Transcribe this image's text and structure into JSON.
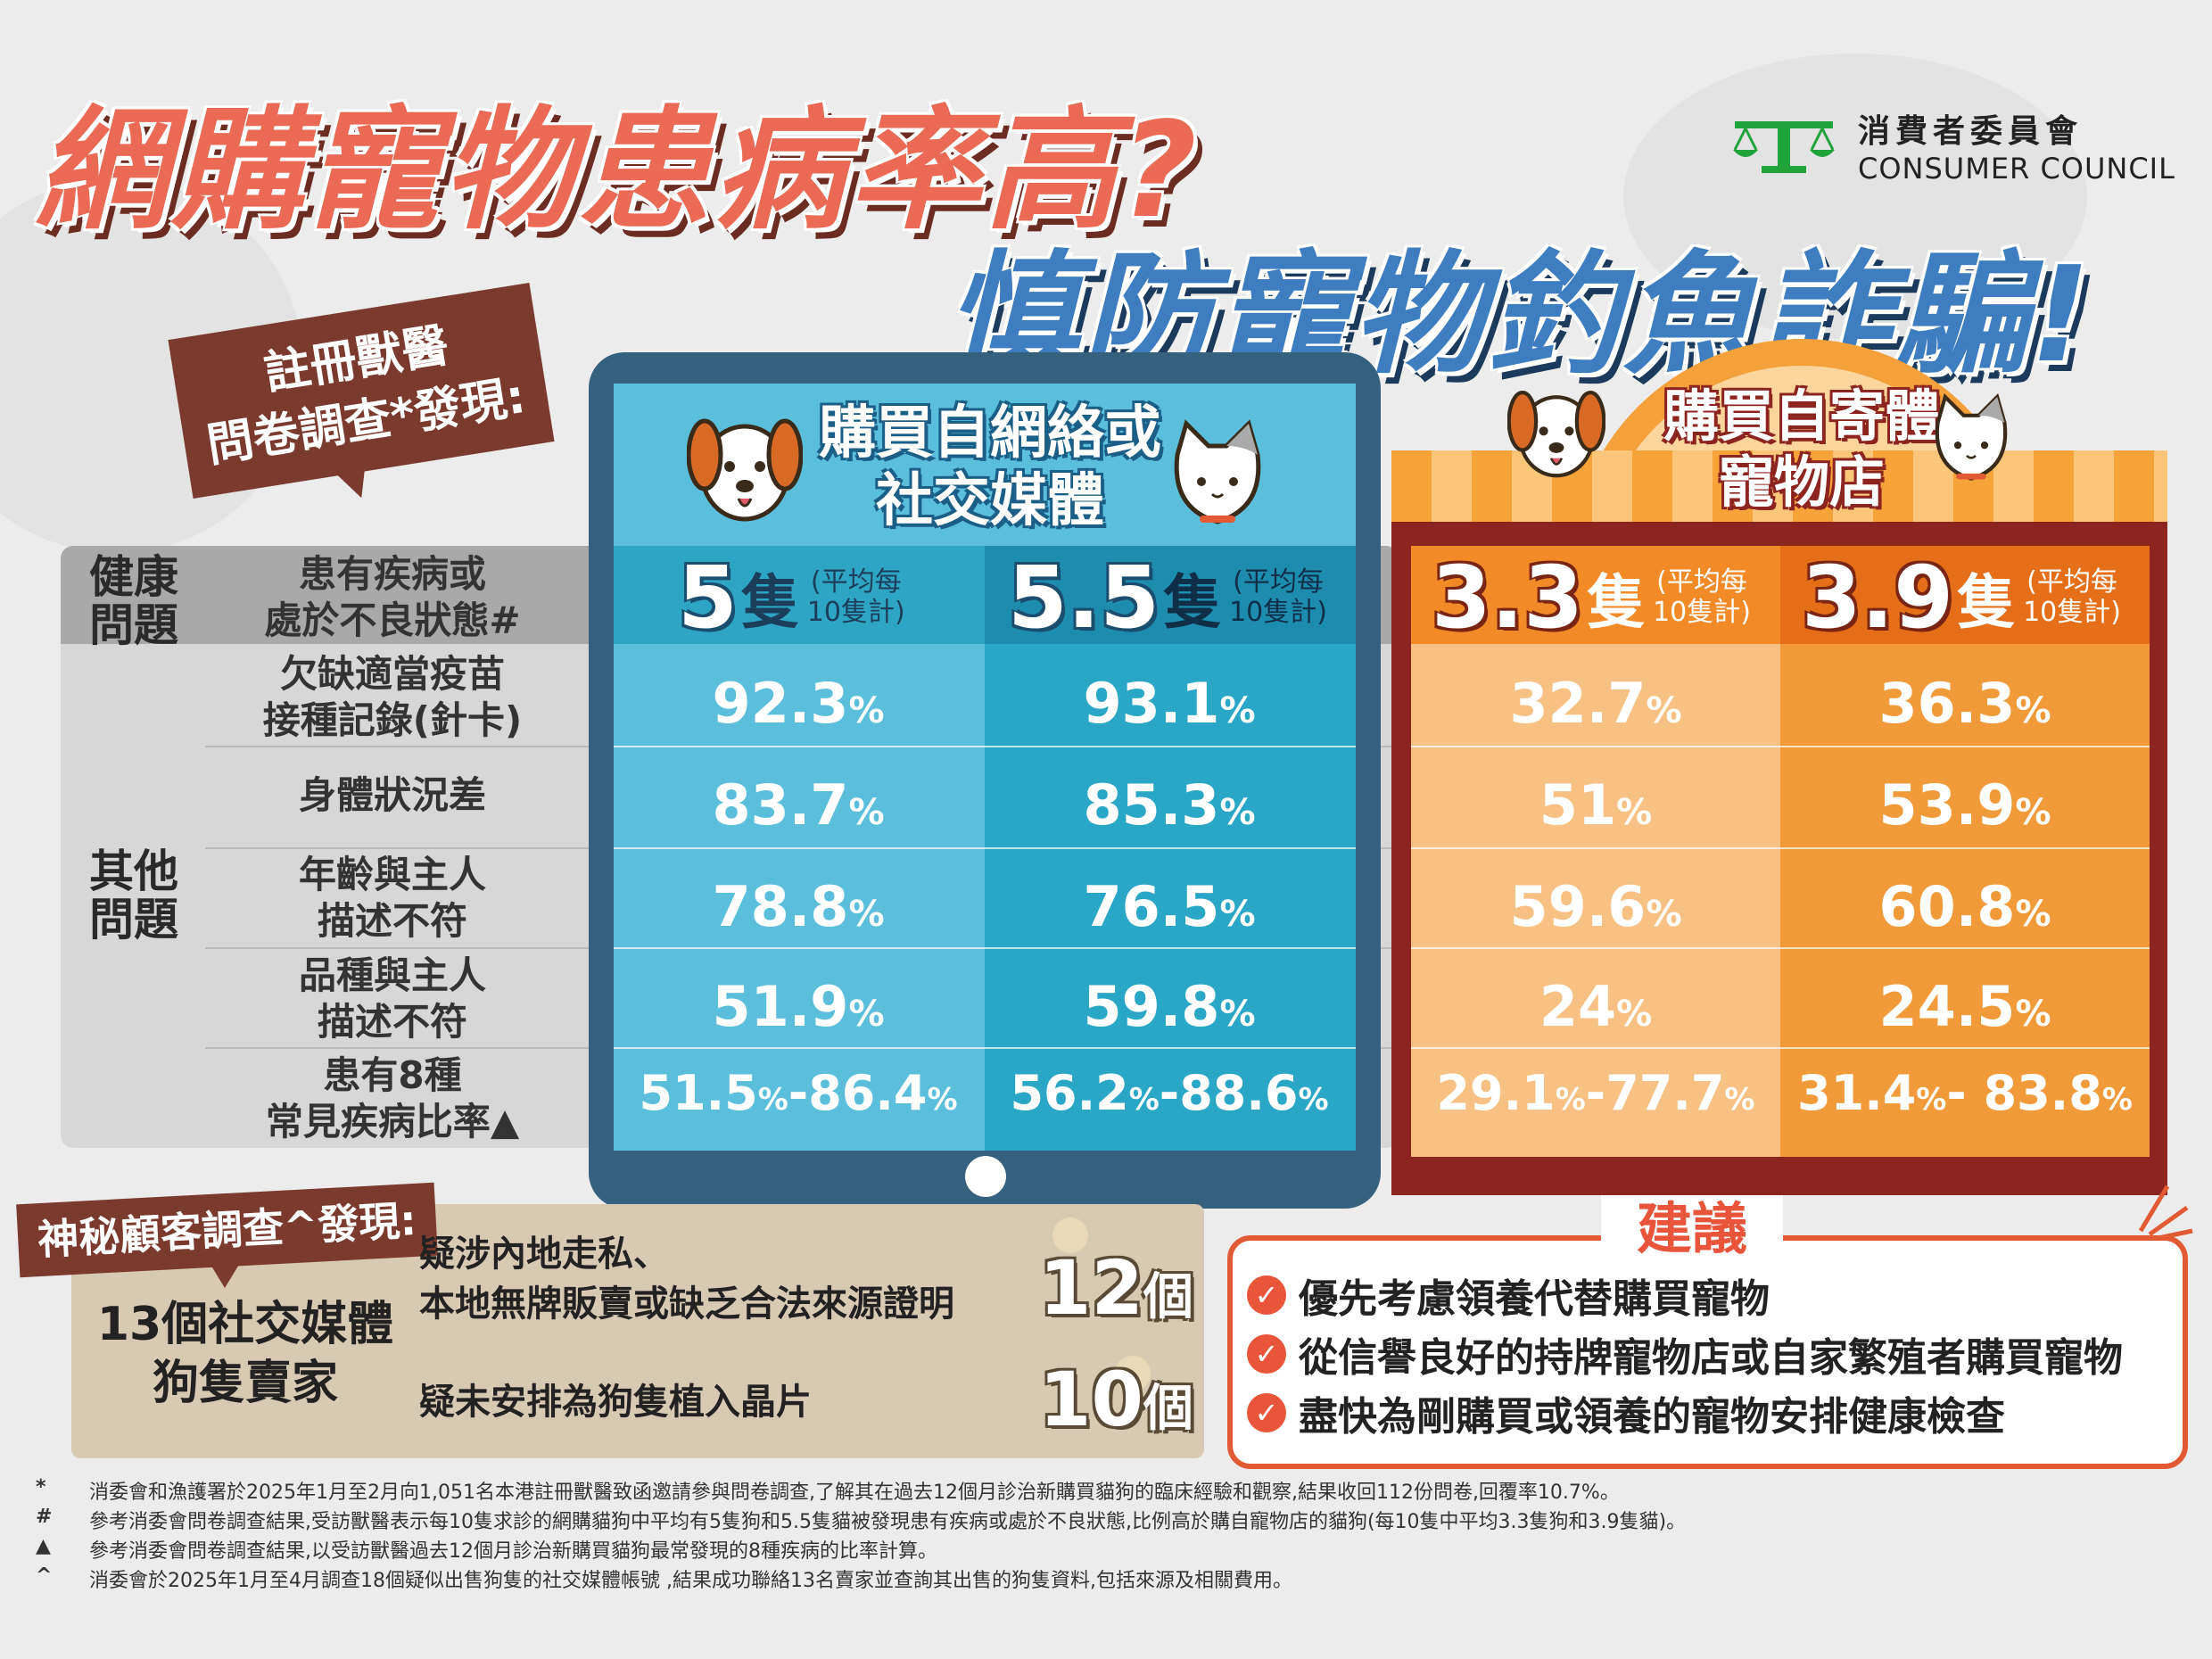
{
  "title": {
    "line1": "網購寵物患病率高?",
    "line2": "慎防寵物釣魚詐騙!"
  },
  "logo": {
    "name_zh": "消費者委員會",
    "name_en": "CONSUMER COUNCIL"
  },
  "survey_label": {
    "line1": "註冊獸醫",
    "line2": "問卷調查*發現:"
  },
  "online": {
    "title_line1": "購買自網絡或",
    "title_line2": "社交媒體"
  },
  "shop": {
    "title_line1": "購買自寄體",
    "title_line2": "寵物店"
  },
  "categories": {
    "health": "健康\n問題",
    "other": "其他\n問題"
  },
  "avg_note": {
    "line1": "(平均每",
    "line2": "10隻計)"
  },
  "unit": "隻",
  "head_row": {
    "label_line1": "患有疾病或",
    "label_line2": "處於不良狀態#",
    "values": [
      "5",
      "5.5",
      "3.3",
      "3.9"
    ]
  },
  "rows": [
    {
      "label_line1": "欠缺適當疫苗",
      "label_line2": "接種記錄(針卡)",
      "values": [
        "92.3",
        "93.1",
        "32.7",
        "36.3"
      ]
    },
    {
      "label_line1": "身體狀況差",
      "label_line2": "",
      "values": [
        "83.7",
        "85.3",
        "51",
        "53.9"
      ]
    },
    {
      "label_line1": "年齡與主人",
      "label_line2": "描述不符",
      "values": [
        "78.8",
        "76.5",
        "59.6",
        "60.8"
      ]
    },
    {
      "label_line1": "品種與主人",
      "label_line2": "描述不符",
      "values": [
        "51.9",
        "59.8",
        "24",
        "24.5"
      ]
    },
    {
      "label_line1": "患有8種",
      "label_line2": "常見疾病比率▲",
      "ranges": [
        [
          "51.5",
          "86.4"
        ],
        [
          "56.2",
          "88.6"
        ],
        [
          "29.1",
          "77.7"
        ],
        [
          "31.4",
          " 83.8"
        ]
      ]
    }
  ],
  "percent": "%",
  "mystery": {
    "label": "神秘顧客調查^發現:",
    "seller_line1": "13個社交媒體",
    "seller_line2": "狗隻賣家",
    "item1_line1": "疑涉內地走私、",
    "item1_line2": "本地無牌販賣或缺乏合法來源證明",
    "item1_num": "12",
    "item2": "疑未安排為狗隻植入晶片",
    "item2_num": "10",
    "count_unit": "個"
  },
  "advice": {
    "title": "建議",
    "items": [
      "優先考慮領養代替購買寵物",
      "從信譽良好的持牌寵物店或自家繁殖者購買寵物",
      "盡快為剛購買或領養的寵物安排健康檢查"
    ]
  },
  "footnotes": [
    {
      "mark": "*",
      "text": "消委會和漁護署於2025年1月至2月向1,051名本港註冊獸醫致函邀請參與問卷調查,了解其在過去12個月診治新購買貓狗的臨床經驗和觀察,結果收回112份問卷,回覆率10.7%。"
    },
    {
      "mark": "#",
      "text": "參考消委會問卷調查結果,受訪獸醫表示每10隻求診的網購貓狗中平均有5隻狗和5.5隻貓被發現患有疾病或處於不良狀態,比例高於購自寵物店的貓狗(每10隻中平均3.3隻狗和3.9隻貓)。"
    },
    {
      "mark": "▲",
      "text": "參考消委會問卷調查結果,以受訪獸醫過去12個月診治新購買貓狗最常發現的8種疾病的比率計算。"
    },
    {
      "mark": "^",
      "text": "消委會於2025年1月至4月調查18個疑似出售狗隻的社交媒體帳號 ,結果成功聯絡13名賣家並查詢其出售的狗隻資料,包括來源及相關費用。"
    }
  ],
  "colors": {
    "online_light": "#5bbfdc",
    "online_dark": "#2aa6c6",
    "shop_light": "#f7c184",
    "shop_dark": "#f19a3a",
    "accent_red": "#e9553a"
  }
}
